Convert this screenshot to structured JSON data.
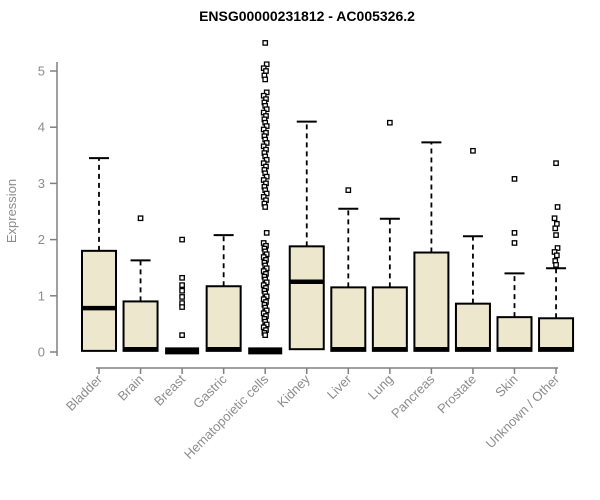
{
  "colors": {
    "background": "#ffffff",
    "box_fill": "#EDE8CD",
    "box_stroke": "#000000",
    "median_color": "#000000",
    "axis_line": "#808080",
    "axis_text": "#8c8c8c",
    "title_color": "#000000",
    "outlier_fill": "#ffffff"
  },
  "chart_data": {
    "type": "boxplot",
    "title": "ENSG00000231812 - AC005326.2",
    "ylabel": "Expression",
    "xlabel": "",
    "ylim": [
      0,
      5.5
    ],
    "yticks": [
      0,
      1,
      2,
      3,
      4,
      5
    ],
    "grid": false,
    "legend": false,
    "categories": [
      "Bladder",
      "Brain",
      "Breast",
      "Gastric",
      "Hematopoietic cells",
      "Kidney",
      "Liver",
      "Lung",
      "Pancreas",
      "Prostate",
      "Skin",
      "Unknown / Other"
    ],
    "series": [
      {
        "name": "Bladder",
        "whisker_low": 0,
        "q1": 0.02,
        "median": 0.78,
        "q3": 1.8,
        "whisker_high": 3.45,
        "outliers": []
      },
      {
        "name": "Brain",
        "whisker_low": 0,
        "q1": 0.02,
        "median": 0.05,
        "q3": 0.9,
        "whisker_high": 1.63,
        "outliers": [
          2.38
        ]
      },
      {
        "name": "Breast",
        "whisker_low": 0,
        "q1": 0,
        "median": 0.02,
        "q3": 0.04,
        "whisker_high": 0.04,
        "outliers": [
          2.0,
          1.32,
          1.19,
          1.09,
          0.98,
          0.87,
          0.8,
          0.3
        ]
      },
      {
        "name": "Gastric",
        "whisker_low": 0,
        "q1": 0.02,
        "median": 0.05,
        "q3": 1.17,
        "whisker_high": 2.08,
        "outliers": []
      },
      {
        "name": "Hematopoietic cells",
        "whisker_low": 0,
        "q1": 0,
        "median": 0.02,
        "q3": 0.04,
        "whisker_high": 0.04,
        "outliers": [
          5.5,
          5.12,
          5.05,
          5.0,
          4.92,
          4.85,
          4.62,
          4.56,
          4.5,
          4.44,
          4.38,
          4.32,
          4.26,
          4.2,
          4.14,
          4.08,
          4.02,
          3.96,
          3.9,
          3.84,
          3.78,
          3.72,
          3.66,
          3.6,
          3.54,
          3.48,
          3.42,
          3.36,
          3.3,
          3.24,
          3.18,
          3.12,
          3.06,
          3.0,
          2.94,
          2.88,
          2.82,
          2.76,
          2.7,
          2.64,
          2.58,
          2.12,
          1.94,
          1.89,
          1.84,
          1.79,
          1.74,
          1.69,
          1.64,
          1.59,
          1.54,
          1.49,
          1.44,
          1.39,
          1.34,
          1.29,
          1.24,
          1.19,
          1.14,
          1.09,
          1.04,
          0.99,
          0.94,
          0.89,
          0.84,
          0.79,
          0.74,
          0.69,
          0.64,
          0.59,
          0.54,
          0.49,
          0.44,
          0.39,
          0.34,
          0.3
        ]
      },
      {
        "name": "Kidney",
        "whisker_low": 0,
        "q1": 0.05,
        "median": 1.25,
        "q3": 1.88,
        "whisker_high": 4.1,
        "outliers": []
      },
      {
        "name": "Liver",
        "whisker_low": 0,
        "q1": 0.02,
        "median": 0.05,
        "q3": 1.15,
        "whisker_high": 2.55,
        "outliers": [
          2.88
        ]
      },
      {
        "name": "Lung",
        "whisker_low": 0,
        "q1": 0.02,
        "median": 0.05,
        "q3": 1.15,
        "whisker_high": 2.37,
        "outliers": [
          4.08
        ]
      },
      {
        "name": "Pancreas",
        "whisker_low": 0,
        "q1": 0.02,
        "median": 0.05,
        "q3": 1.77,
        "whisker_high": 3.73,
        "outliers": []
      },
      {
        "name": "Prostate",
        "whisker_low": 0,
        "q1": 0.02,
        "median": 0.05,
        "q3": 0.86,
        "whisker_high": 2.06,
        "outliers": [
          3.58
        ]
      },
      {
        "name": "Skin",
        "whisker_low": 0,
        "q1": 0.02,
        "median": 0.05,
        "q3": 0.62,
        "whisker_high": 1.4,
        "outliers": [
          3.08,
          2.12,
          1.94
        ]
      },
      {
        "name": "Unknown / Other",
        "whisker_low": 0,
        "q1": 0.02,
        "median": 0.05,
        "q3": 0.6,
        "whisker_high": 1.49,
        "outliers": [
          3.36,
          2.58,
          2.38,
          2.28,
          2.2,
          2.08,
          1.85,
          1.78,
          1.72,
          1.62,
          1.55
        ]
      }
    ]
  }
}
